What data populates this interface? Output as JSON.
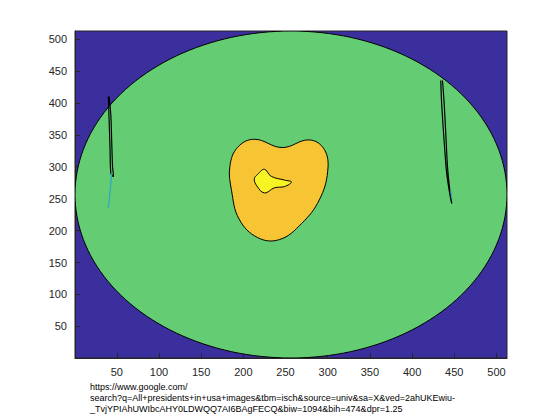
{
  "chart_data": {
    "type": "contour",
    "xlabel": "https://www.google.com/\nsearch?q=All+presidents+in+usa+images&tbm=isch&source=univ&sa=X&ved=2ahUKEwiu-\n_TvjYPIAhUWIbcAHY0LDWQQ7AI6BAgFECQ&biw=1094&bih=474&dpr=1.25",
    "xlim": [
      0.5,
      512.5
    ],
    "ylim": [
      0.5,
      512.5
    ],
    "xticks": [
      50,
      100,
      150,
      200,
      250,
      300,
      350,
      400,
      450,
      500
    ],
    "yticks": [
      50,
      100,
      150,
      200,
      250,
      300,
      350,
      400,
      450,
      500
    ],
    "color": "#3b2f9e",
    "regions": [
      {
        "shape": "ellipse",
        "center": [
          256.5,
          256.5
        ],
        "radii": [
          256,
          256
        ],
        "color": "#64cd73"
      },
      {
        "shape": "polygon",
        "color": "#f7c534",
        "points": [
          [
            193,
            330
          ],
          [
            213,
            343
          ],
          [
            246,
            330
          ],
          [
            278,
            342
          ],
          [
            296,
            327
          ],
          [
            300,
            293
          ],
          [
            290,
            248
          ],
          [
            269,
            211
          ],
          [
            243,
            186
          ],
          [
            217,
            189
          ],
          [
            195,
            218
          ],
          [
            186,
            263
          ],
          [
            184,
            300
          ]
        ]
      },
      {
        "shape": "polygon",
        "color": "#f6f423",
        "points": [
          [
            217,
            288
          ],
          [
            225,
            296
          ],
          [
            233,
            285
          ],
          [
            249,
            279
          ],
          [
            257,
            276
          ],
          [
            249,
            269
          ],
          [
            237,
            267
          ],
          [
            225,
            259
          ],
          [
            216,
            270
          ],
          [
            213,
            281
          ]
        ]
      }
    ],
    "lines": [
      {
        "color": "#000000",
        "points": [
          [
            41,
            410
          ],
          [
            43,
            380
          ],
          [
            44,
            340
          ],
          [
            45,
            300
          ],
          [
            46,
            285
          ],
          [
            43,
            290
          ],
          [
            42,
            330
          ],
          [
            41,
            370
          ],
          [
            40,
            410
          ]
        ]
      },
      {
        "color": "#2aa8c9",
        "points": [
          [
            44,
            290
          ],
          [
            42,
            260
          ],
          [
            40,
            235
          ]
        ]
      },
      {
        "color": "#000000",
        "points": [
          [
            436,
            435
          ],
          [
            438,
            400
          ],
          [
            440,
            350
          ],
          [
            442,
            300
          ],
          [
            445,
            260
          ],
          [
            447,
            243
          ],
          [
            445,
            255
          ],
          [
            441,
            290
          ],
          [
            438,
            340
          ],
          [
            435,
            400
          ],
          [
            434,
            435
          ]
        ]
      },
      {
        "color": "#2aa8c9",
        "points": [
          [
            446,
            262
          ],
          [
            447,
            250
          ]
        ]
      }
    ]
  }
}
